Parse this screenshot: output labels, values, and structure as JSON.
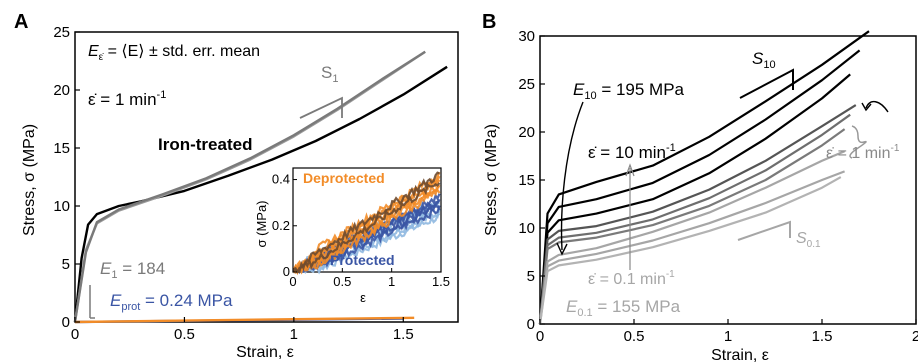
{
  "chart_data": [
    {
      "panel": "A",
      "type": "line",
      "xlabel": "Strain, ε",
      "ylabel": "Stress, σ (MPa)",
      "xlim": [
        0,
        1.75
      ],
      "ylim": [
        0,
        25
      ],
      "xticks": [
        0,
        0.5,
        1,
        1.5
      ],
      "yticks": [
        0,
        5,
        10,
        15,
        20,
        25
      ],
      "grid": false,
      "text": {
        "eq_mean": "E",
        "eq_mean_sub": "ε̇",
        "eq_mean_rest": " = ⟨E⟩ ± std. err. mean",
        "rate": "ε̇ = 1 min",
        "rate_sup": "-1",
        "iron_label": "Iron-treated",
        "slope_label": "S",
        "slope_sub": "1",
        "e1_label": "E",
        "e1_sub": "1",
        "e1_value": " = 184",
        "eprot_label": "E",
        "eprot_sub": "prot",
        "eprot_value": " = 0.24 MPa"
      },
      "series": [
        {
          "color": "#000000",
          "x": [
            0,
            0.03,
            0.06,
            0.1,
            0.2,
            0.3,
            0.5,
            0.7,
            0.9,
            1.1,
            1.3,
            1.5,
            1.7
          ],
          "y": [
            0,
            5.5,
            8.4,
            9.3,
            10.0,
            10.4,
            11.3,
            12.6,
            14.0,
            15.6,
            17.5,
            19.6,
            22.0
          ]
        },
        {
          "color": "#9a9a9a",
          "x": [
            0,
            0.05,
            0.1,
            0.2,
            0.4,
            0.6,
            0.8,
            1.0,
            1.2,
            1.4,
            1.6
          ],
          "y": [
            0,
            6.2,
            8.5,
            9.6,
            10.9,
            12.3,
            14.0,
            16.0,
            18.3,
            20.8,
            23.3
          ]
        },
        {
          "color": "#7a7a7a",
          "x": [
            0,
            0.05,
            0.1,
            0.2,
            0.4,
            0.6,
            0.8,
            1.0,
            1.2,
            1.4,
            1.6
          ],
          "y": [
            0,
            6.0,
            8.6,
            9.7,
            11.0,
            12.4,
            14.1,
            16.1,
            18.4,
            20.9,
            23.3
          ]
        },
        {
          "color": "#3a55a4",
          "x": [
            0,
            0.5,
            1.0,
            1.5
          ],
          "y": [
            0,
            0.1,
            0.2,
            0.3
          ]
        },
        {
          "color": "#f28c28",
          "x": [
            0,
            0.5,
            1.0,
            1.55
          ],
          "y": [
            0,
            0.12,
            0.24,
            0.36
          ]
        }
      ],
      "inset": {
        "xlabel": "ε",
        "ylabel": "σ (MPa)",
        "xlim": [
          0,
          1.5
        ],
        "ylim": [
          0,
          0.45
        ],
        "xticks": [
          0,
          0.5,
          1,
          1.5
        ],
        "yticks": [
          0,
          0.2,
          0.4
        ],
        "labels": {
          "deprotected": "Deprotected",
          "protected": "Protected"
        },
        "colors": {
          "deprotected": "#f28c28",
          "protected": "#3a55a4",
          "protected_light": "#8fb8e0",
          "dark": "#6e4a2e"
        }
      }
    },
    {
      "panel": "B",
      "type": "line",
      "xlabel": "Strain, ε",
      "ylabel": "Stress, σ (MPa)",
      "xlim": [
        0,
        2
      ],
      "ylim": [
        0,
        30
      ],
      "xticks": [
        0,
        0.5,
        1,
        1.5,
        2
      ],
      "yticks": [
        0,
        5,
        10,
        15,
        20,
        25,
        30
      ],
      "grid": false,
      "text": {
        "s10_label": "S",
        "s10_sub": "10",
        "e10_label": "E",
        "e10_sub": "10",
        "e10_value": " = 195 MPa",
        "rate10": "ε̇ = 10 min",
        "rate10_sup": "-1",
        "rate1": "ε̇ = 1 min",
        "rate1_sup": "-1",
        "rate01": "ε̇ = 0.1 min",
        "rate01_sup": "-1",
        "s01_label": "S",
        "s01_sub": "0.1",
        "e01_label": "E",
        "e01_sub": "0.1",
        "e01_value": " = 155 MPa"
      },
      "series": [
        {
          "color": "#000000",
          "x": [
            0,
            0.04,
            0.1,
            0.3,
            0.6,
            0.9,
            1.2,
            1.5,
            1.75
          ],
          "y": [
            0,
            11.5,
            13.5,
            14.8,
            16.5,
            19.5,
            23.2,
            27.0,
            30.5
          ]
        },
        {
          "color": "#000000",
          "x": [
            0,
            0.04,
            0.1,
            0.3,
            0.6,
            0.9,
            1.2,
            1.5,
            1.7
          ],
          "y": [
            0,
            10.5,
            12.2,
            13.0,
            14.7,
            17.6,
            21.3,
            25.4,
            28.5
          ]
        },
        {
          "color": "#000000",
          "x": [
            0,
            0.04,
            0.1,
            0.3,
            0.6,
            0.9,
            1.2,
            1.5,
            1.65
          ],
          "y": [
            0,
            9.5,
            10.8,
            11.5,
            13.0,
            15.7,
            19.3,
            23.5,
            26.0
          ]
        },
        {
          "color": "#555555",
          "x": [
            0,
            0.04,
            0.1,
            0.3,
            0.6,
            0.9,
            1.2,
            1.5,
            1.68
          ],
          "y": [
            0,
            8.8,
            9.7,
            10.2,
            11.7,
            14.0,
            17.0,
            20.6,
            22.8
          ]
        },
        {
          "color": "#6e6e6e",
          "x": [
            0,
            0.04,
            0.1,
            0.3,
            0.6,
            0.9,
            1.2,
            1.5,
            1.65
          ],
          "y": [
            0,
            8.2,
            9.0,
            9.5,
            10.9,
            13.1,
            16.0,
            19.7,
            21.8
          ]
        },
        {
          "color": "#7a7a7a",
          "x": [
            0,
            0.04,
            0.1,
            0.3,
            0.6,
            0.9,
            1.2,
            1.5,
            1.62
          ],
          "y": [
            0,
            7.8,
            8.5,
            9.0,
            10.3,
            12.3,
            15.0,
            18.6,
            20.3
          ]
        },
        {
          "color": "#a6a6a6",
          "x": [
            0,
            0.04,
            0.1,
            0.3,
            0.6,
            0.9,
            1.2,
            1.5,
            1.62
          ],
          "y": [
            0,
            6.5,
            7.2,
            7.9,
            9.6,
            11.6,
            14.2,
            17.0,
            18.0
          ]
        },
        {
          "color": "#a6a6a6",
          "x": [
            0,
            0.04,
            0.1,
            0.3,
            0.6,
            0.9,
            1.2,
            1.5,
            1.62
          ],
          "y": [
            0,
            6.0,
            6.6,
            7.3,
            8.7,
            10.5,
            12.6,
            15.0,
            15.9
          ]
        },
        {
          "color": "#b3b3b3",
          "x": [
            0,
            0.04,
            0.1,
            0.3,
            0.6,
            0.9,
            1.2,
            1.5,
            1.6
          ],
          "y": [
            0,
            5.5,
            6.1,
            6.7,
            8.0,
            9.7,
            11.6,
            14.2,
            15.3
          ]
        }
      ]
    }
  ],
  "panel_labels": {
    "a": "A",
    "b": "B"
  }
}
